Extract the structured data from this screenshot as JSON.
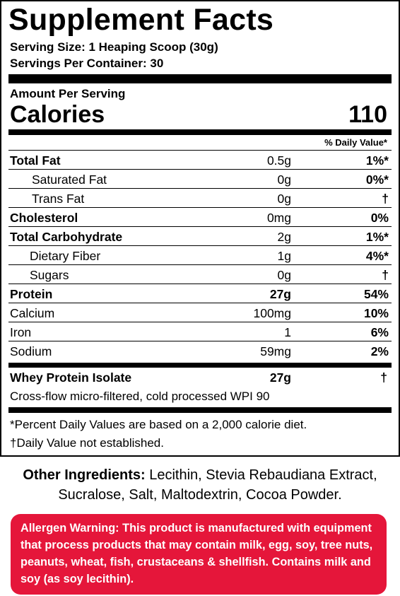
{
  "facts": {
    "title": "Supplement Facts",
    "serving_size": "Serving Size: 1 Heaping Scoop (30g)",
    "servings_per_container": "Servings Per Container: 30",
    "amount_per_serving": "Amount Per Serving",
    "calories_label": "Calories",
    "calories_value": "110",
    "dv_header": "% Daily Value*",
    "rows": [
      {
        "name": "Total Fat",
        "amount": "0.5g",
        "dv": "1%*"
      },
      {
        "name": "Saturated Fat",
        "amount": "0g",
        "dv": "0%*"
      },
      {
        "name": "Trans Fat",
        "amount": "0g",
        "dv": "†"
      },
      {
        "name": "Cholesterol",
        "amount": "0mg",
        "dv": "0%"
      },
      {
        "name": "Total Carbohydrate",
        "amount": "2g",
        "dv": "1%*"
      },
      {
        "name": "Dietary Fiber",
        "amount": "1g",
        "dv": "4%*"
      },
      {
        "name": "Sugars",
        "amount": "0g",
        "dv": "†"
      },
      {
        "name": "Protein",
        "amount": "27g",
        "dv": "54%"
      },
      {
        "name": "Calcium",
        "amount": "100mg",
        "dv": "10%"
      },
      {
        "name": "Iron",
        "amount": "1",
        "dv": "6%"
      },
      {
        "name": "Sodium",
        "amount": "59mg",
        "dv": "2%"
      }
    ],
    "whey": {
      "name": "Whey Protein Isolate",
      "amount": "27g",
      "dv": "†",
      "description": "Cross-flow micro-filtered, cold processed WPI 90"
    },
    "footnote_percent": "*Percent Daily Values are based on a 2,000 calorie diet.",
    "footnote_dagger": "†Daily Value not established."
  },
  "other_ingredients": {
    "label": "Other Ingredients:",
    "text": " Lecithin, Stevia Rebaudiana Extract, Sucralose, Salt, Maltodextrin, Cocoa Powder."
  },
  "allergen": {
    "text": "Allergen Warning: This product is manufactured with equipment that process products that may contain milk, egg, soy, tree nuts, peanuts, wheat, fish, crustaceans & shellfish. Contains milk and soy (as soy lecithin).",
    "background_color": "#e5163a"
  }
}
